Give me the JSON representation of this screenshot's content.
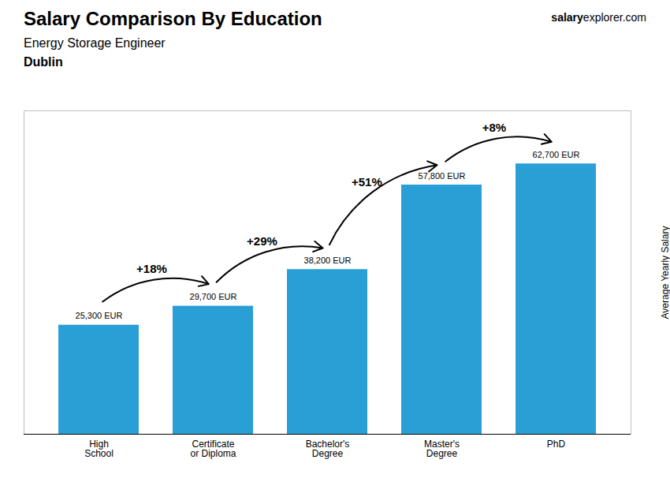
{
  "chart_data": {
    "type": "bar",
    "title": "Salary Comparison By Education",
    "subtitle": "Energy Storage Engineer",
    "city": "Dublin",
    "source": [
      "salary",
      "explorer.com"
    ],
    "ylabel": "Average Yearly Salary",
    "categories": [
      "High\nSchool",
      "Certificate\nor Diploma",
      "Bachelor's\nDegree",
      "Master's\nDegree",
      "PhD"
    ],
    "values": [
      25300,
      29700,
      38200,
      57800,
      62700
    ],
    "value_labels": [
      "25,300 EUR",
      "29,700 EUR",
      "38,200 EUR",
      "57,800 EUR",
      "62,700 EUR"
    ],
    "data_labels": true,
    "arrow_labels": [
      "+18%",
      "+29%",
      "+51%",
      "+8%"
    ],
    "color": "#2a9fd6",
    "ylim": [
      0,
      75000
    ],
    "tick_labels": "x",
    "grid": false
  }
}
